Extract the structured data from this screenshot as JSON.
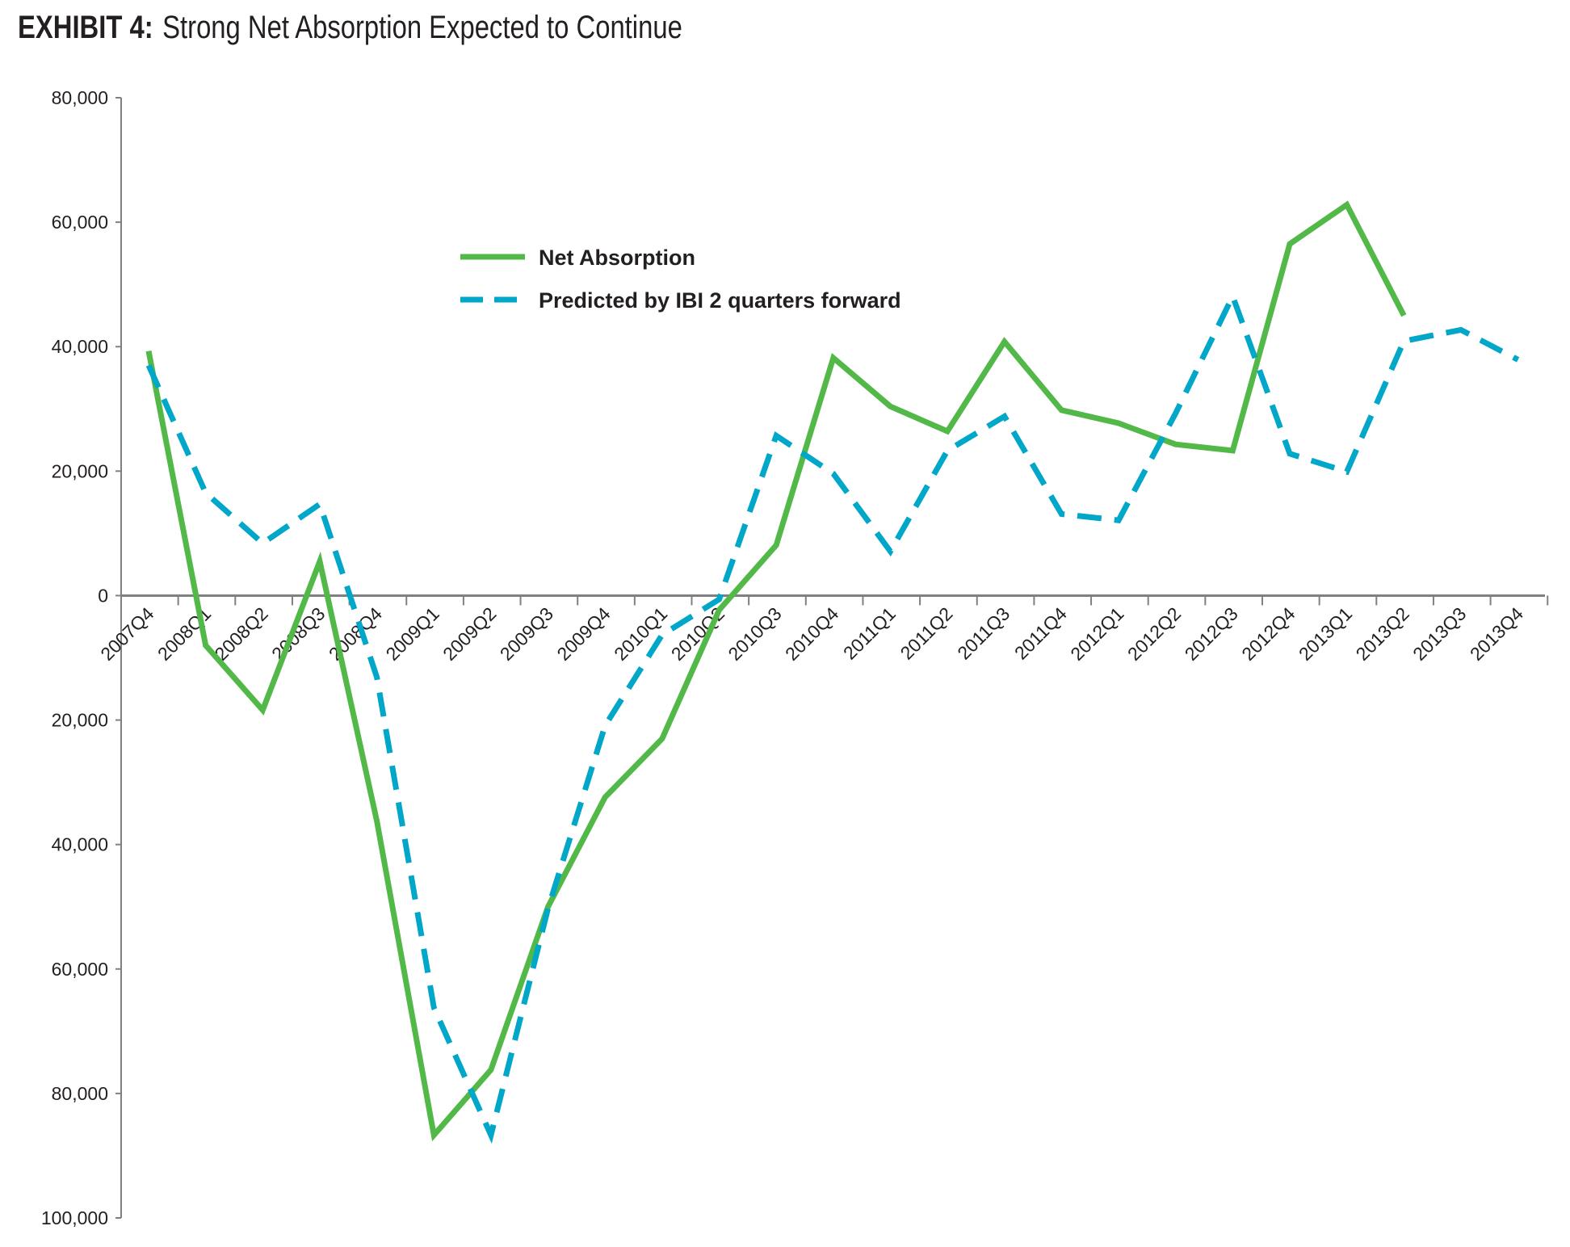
{
  "title": {
    "label": "EXHIBIT 4:",
    "text": "Strong Net Absorption Expected to Continue"
  },
  "chart_data": {
    "type": "line",
    "title": "Strong Net Absorption Expected to Continue",
    "xlabel": "",
    "ylabel": "",
    "ylim": [
      -100000,
      80000
    ],
    "yticks": [
      80000,
      60000,
      40000,
      20000,
      0,
      -20000,
      -40000,
      -60000,
      -80000,
      -100000
    ],
    "ytick_labels": [
      "80,000",
      "60,000",
      "40,000",
      "20,000",
      "0",
      "20,000",
      "40,000",
      "60,000",
      "80,000",
      "100,000"
    ],
    "categories": [
      "2007Q4",
      "2008Q1",
      "2008Q2",
      "2008Q3",
      "2008Q4",
      "2009Q1",
      "2009Q2",
      "2009Q3",
      "2009Q4",
      "2010Q1",
      "2010Q2",
      "2010Q3",
      "2010Q4",
      "2011Q1",
      "2011Q2",
      "2011Q3",
      "2011Q4",
      "2012Q1",
      "2012Q2",
      "2012Q3",
      "2012Q4",
      "2013Q1",
      "2013Q2",
      "2013Q3",
      "2013Q4"
    ],
    "legend_position": "top-center",
    "grid": false,
    "series": [
      {
        "name": "Net Absorption",
        "color": "#52b848",
        "style": "solid",
        "values": [
          39300,
          -8000,
          -18400,
          5500,
          -36200,
          -86700,
          -76200,
          -50000,
          -32400,
          -23000,
          -2300,
          8100,
          38200,
          30400,
          26400,
          40800,
          29800,
          27700,
          24300,
          23300,
          56500,
          62800,
          45000,
          null,
          null
        ]
      },
      {
        "name": "Predicted by IBI 2 quarters forward",
        "color": "#00a7c9",
        "style": "dashed",
        "values": [
          37000,
          16500,
          8400,
          14700,
          -13100,
          -66200,
          -86700,
          -50300,
          -20900,
          -6300,
          -600,
          25700,
          19600,
          7100,
          23300,
          28800,
          13100,
          12100,
          29300,
          48100,
          22800,
          19900,
          40900,
          42700,
          37900
        ]
      }
    ]
  }
}
